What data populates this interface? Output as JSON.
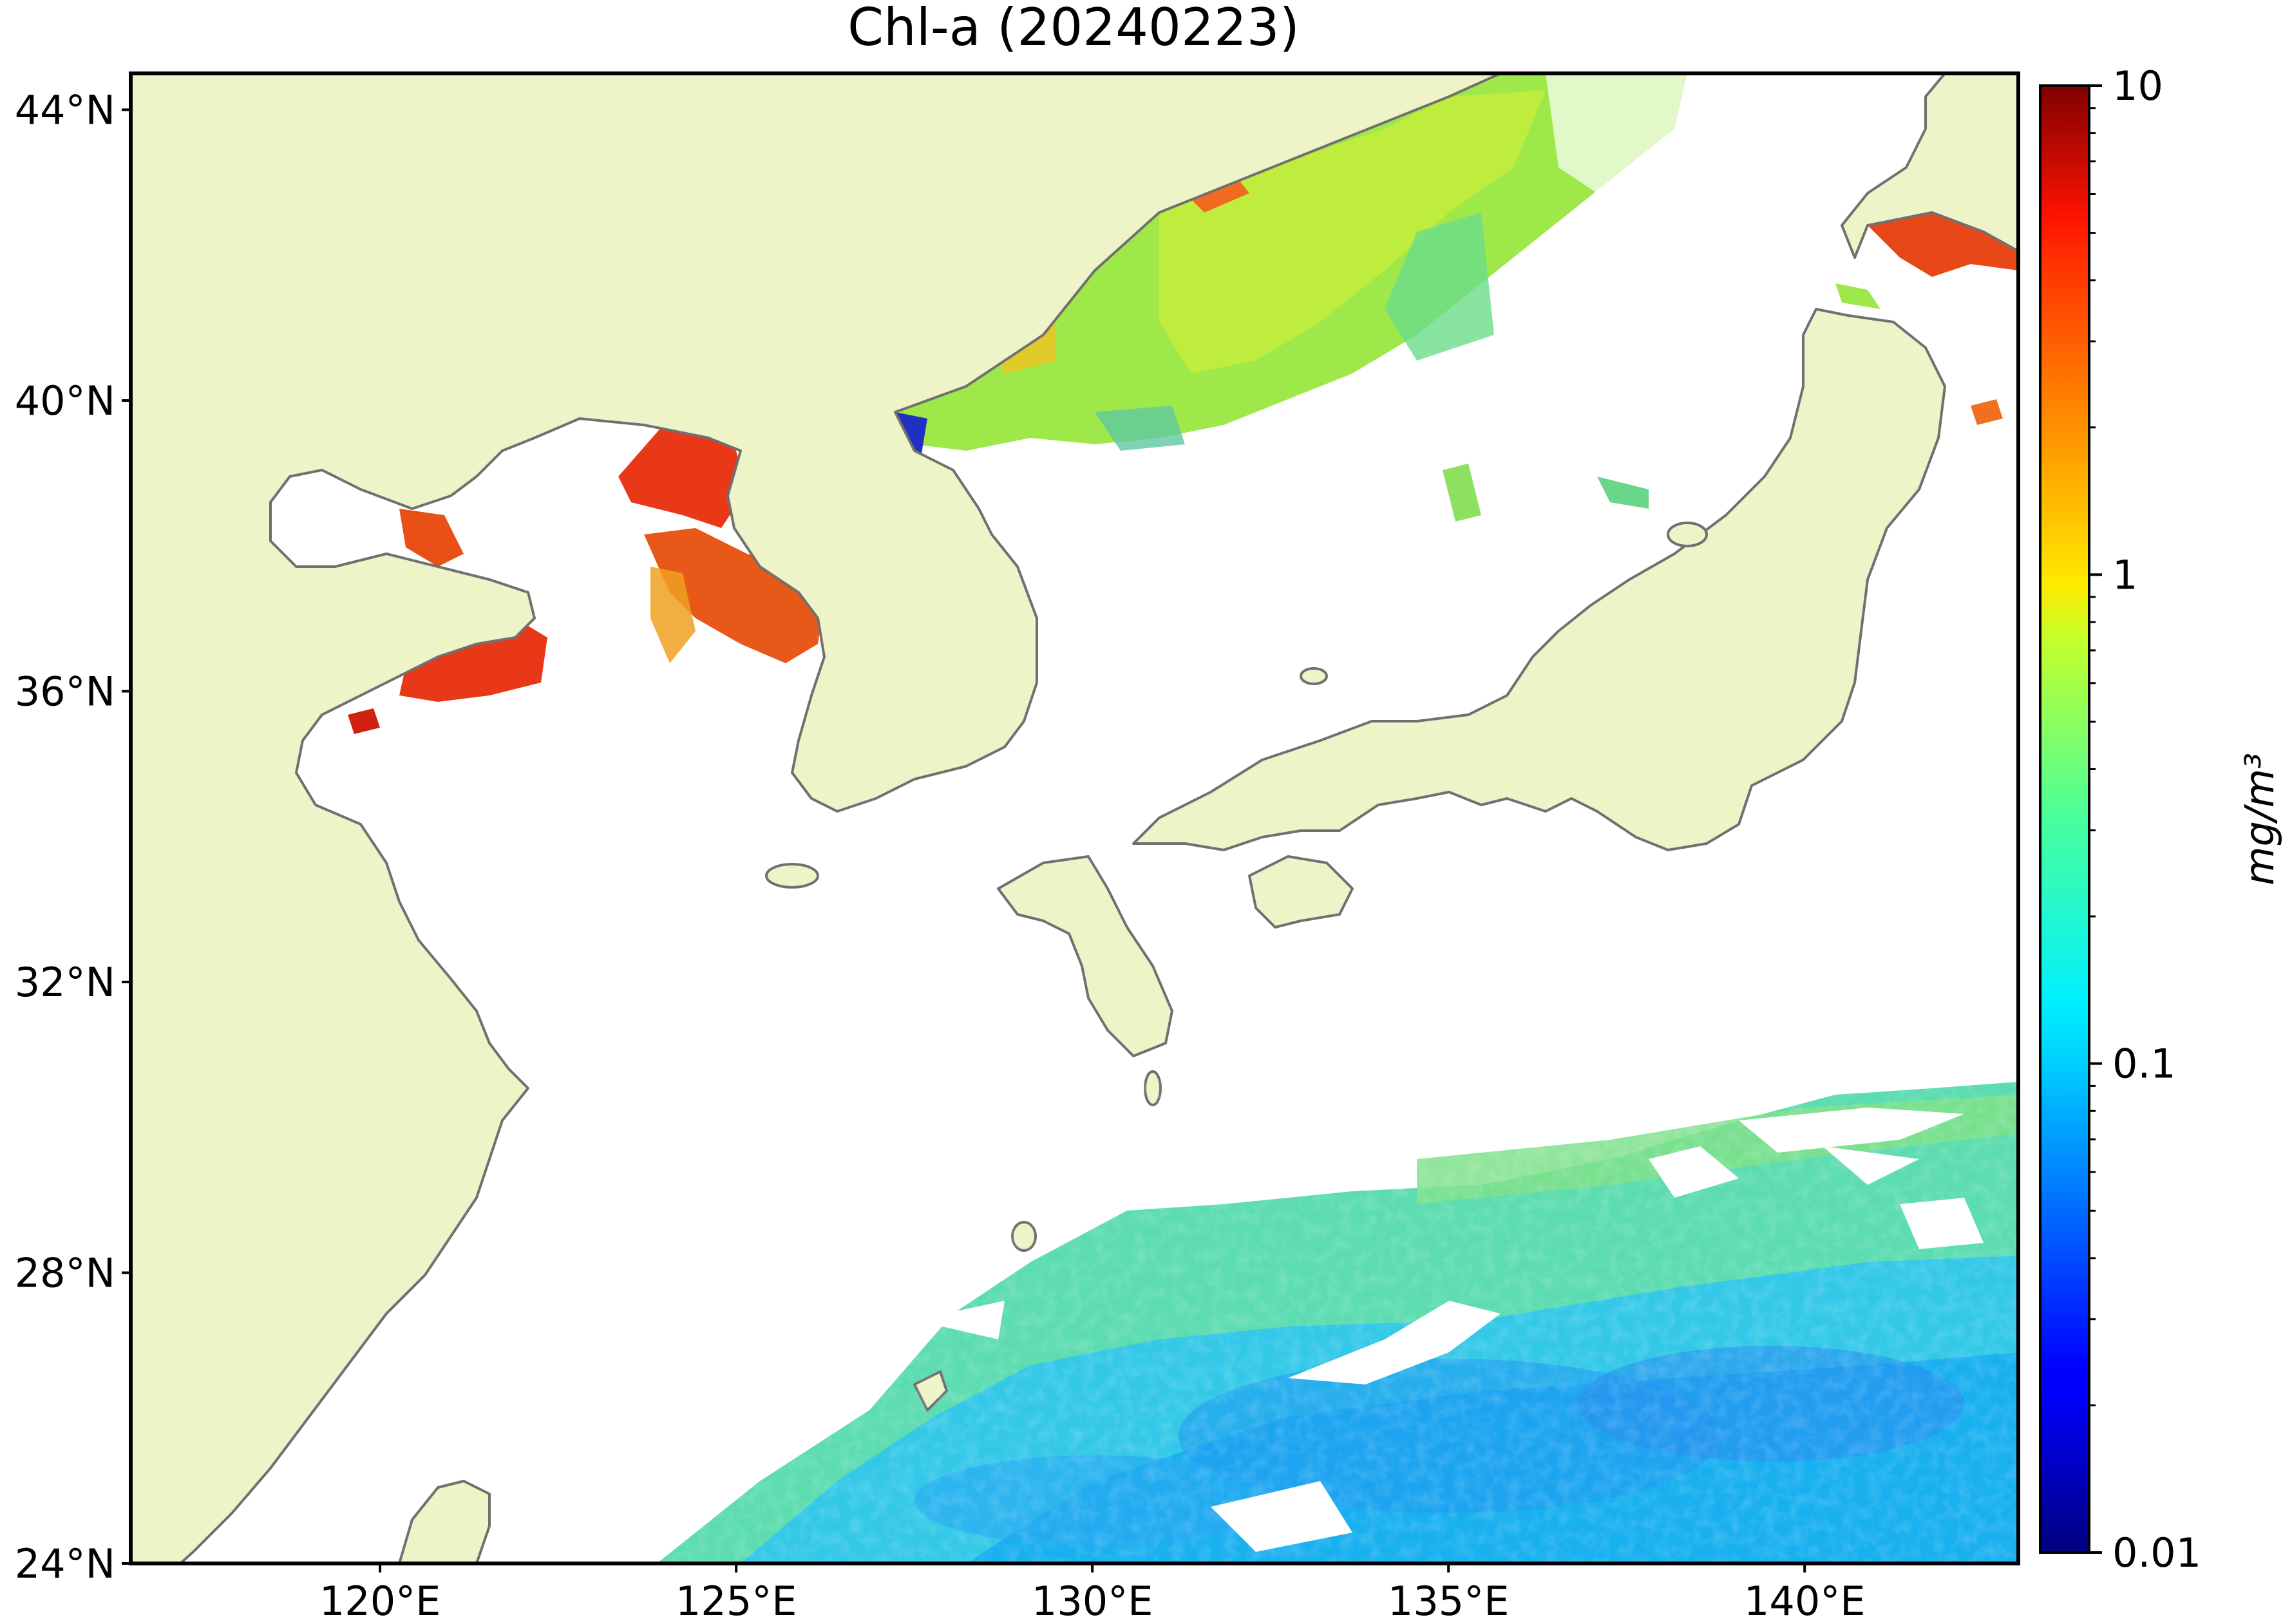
{
  "title": "Chl-a (20240223)",
  "map": {
    "lon_range": [
      116.5,
      143
    ],
    "lat_range": [
      24,
      44.5
    ],
    "lat_ticks": [
      {
        "value": 44,
        "label": "44°N"
      },
      {
        "value": 40,
        "label": "40°N"
      },
      {
        "value": 36,
        "label": "36°N"
      },
      {
        "value": 32,
        "label": "32°N"
      },
      {
        "value": 28,
        "label": "28°N"
      },
      {
        "value": 24,
        "label": "24°N"
      }
    ],
    "lon_ticks": [
      {
        "value": 120,
        "label": "120°E"
      },
      {
        "value": 125,
        "label": "125°E"
      },
      {
        "value": 130,
        "label": "130°E"
      },
      {
        "value": 135,
        "label": "135°E"
      },
      {
        "value": 140,
        "label": "140°E"
      }
    ],
    "colors": {
      "land": "#eef3c8",
      "coastline": "#707070",
      "no_data": "#ffffff"
    }
  },
  "colorbar": {
    "label": "mg/m³",
    "scale": "log",
    "range": [
      0.01,
      10
    ],
    "colormap": "jet",
    "ticks": [
      {
        "value": 10,
        "label": "10"
      },
      {
        "value": 1,
        "label": "1"
      },
      {
        "value": 0.1,
        "label": "0.1"
      },
      {
        "value": 0.01,
        "label": "0.01"
      }
    ]
  }
}
